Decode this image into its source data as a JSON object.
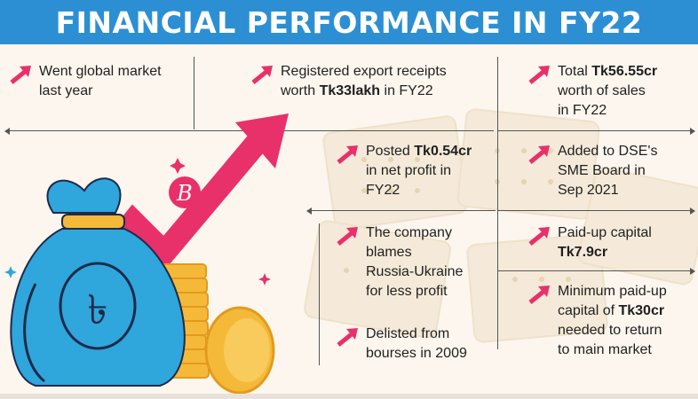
{
  "title": "FINANCIAL PERFORMANCE IN FY22",
  "colors": {
    "title_bar": "#2d8fd3",
    "arrow": "#e8306a",
    "background": "#fdf6ee",
    "bag": "#2fa6dc",
    "coin": "#f5b93a"
  },
  "icons": [
    "pink-arrow-icon",
    "money-bag-icon",
    "taka-symbol-icon",
    "coin-stack-icon",
    "growth-arrow-icon",
    "company-logo-icon"
  ],
  "facts": {
    "global_market": {
      "lines": [
        "Went global market",
        "last year"
      ]
    },
    "export_receipts": {
      "l1": "Registered export receipts",
      "l2_pre": "worth ",
      "l2_bold": "Tk33lakh",
      "l2_post": " in FY22"
    },
    "total_sales": {
      "l1_pre": "Total ",
      "l1_bold": "Tk56.55cr",
      "l2": "worth of sales",
      "l3": "in FY22"
    },
    "net_profit": {
      "l1_pre": "Posted ",
      "l1_bold": "Tk0.54cr",
      "l2": "in net profit in",
      "l3": "FY22"
    },
    "dse_sme": {
      "lines": [
        "Added to DSE's",
        "SME Board in",
        "Sep 2021"
      ]
    },
    "russia_ukraine": {
      "lines": [
        "The company",
        "blames",
        "Russia-Ukraine",
        "for less profit"
      ]
    },
    "paid_up": {
      "l1": "Paid-up capital",
      "l2_bold": "Tk7.9cr"
    },
    "min_paid_up": {
      "l1": "Minimum paid-up",
      "l2_pre": "capital of ",
      "l2_bold": "Tk30cr",
      "l3": "needed to return",
      "l4": "to main market"
    },
    "delisted": {
      "lines": [
        "Delisted from",
        "bourses in 2009"
      ]
    }
  }
}
